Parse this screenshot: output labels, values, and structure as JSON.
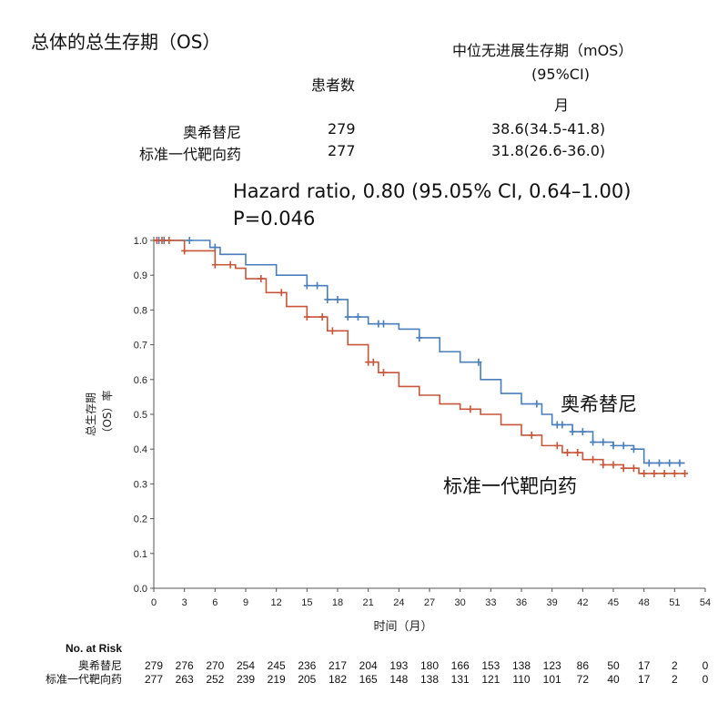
{
  "header": {
    "title": "总体的总生存期（OS）",
    "col_patients": "患者数",
    "col_median_line1": "中位无进展生存期（mOS）",
    "col_median_line2": "(95%CI)",
    "col_median_line3": "月",
    "rows": [
      {
        "name": "奥希替尼",
        "patients": "279",
        "median": "38.6(34.5-41.8)"
      },
      {
        "name": "标准一代靶向药",
        "patients": "277",
        "median": "31.8(26.6-36.0)"
      }
    ],
    "hazard_ratio": "Hazard ratio, 0.80 (95.05% CI, 0.64–1.00)",
    "p_value": "P=0.046"
  },
  "chart_data": {
    "type": "line",
    "subtype": "kaplan-meier-step",
    "xlabel": "时间（月）",
    "ylabel_line1": "总生存期",
    "ylabel_line2": "（OS）率",
    "xlim": [
      0,
      54
    ],
    "ylim": [
      0,
      1.0
    ],
    "xticks": [
      "0",
      "3",
      "6",
      "9",
      "12",
      "15",
      "18",
      "21",
      "24",
      "27",
      "30",
      "33",
      "36",
      "39",
      "42",
      "45",
      "48",
      "51",
      "54"
    ],
    "yticks": [
      "0.0",
      "0.1",
      "0.2",
      "0.3",
      "0.4",
      "0.5",
      "0.6",
      "0.7",
      "0.8",
      "0.9",
      "1.0"
    ],
    "grid": false,
    "series": [
      {
        "name": "奥希替尼",
        "color": "#4a7ebb",
        "x": [
          0,
          5.5,
          6.5,
          9,
          12,
          15,
          17,
          19,
          21,
          24,
          26,
          28,
          30,
          32,
          34,
          36,
          38,
          39,
          41,
          43,
          45,
          47,
          48,
          52
        ],
        "y": [
          1.0,
          0.98,
          0.96,
          0.93,
          0.9,
          0.87,
          0.83,
          0.78,
          0.76,
          0.745,
          0.72,
          0.68,
          0.65,
          0.6,
          0.56,
          0.53,
          0.5,
          0.47,
          0.45,
          0.42,
          0.41,
          0.4,
          0.36,
          0.36
        ],
        "censored_x": [
          0.5,
          1,
          3.5,
          6,
          15,
          16,
          17,
          18,
          19,
          20,
          22,
          22.5,
          26,
          31.8,
          37.5,
          39.5,
          40,
          41,
          42,
          43,
          44,
          45,
          46,
          47,
          48.5,
          49.5,
          50.5,
          51.5
        ]
      },
      {
        "name": "标准一代靶向药",
        "color": "#c8553a",
        "x": [
          0,
          3,
          6,
          8,
          9,
          11,
          13,
          15,
          17,
          19,
          21,
          22,
          24,
          26,
          28,
          30,
          32,
          34,
          36,
          38,
          40,
          42,
          44,
          46,
          47.5,
          52
        ],
        "y": [
          1.0,
          0.97,
          0.93,
          0.92,
          0.89,
          0.85,
          0.81,
          0.78,
          0.74,
          0.7,
          0.65,
          0.62,
          0.58,
          0.555,
          0.53,
          0.515,
          0.5,
          0.47,
          0.44,
          0.41,
          0.39,
          0.37,
          0.355,
          0.345,
          0.33,
          0.33
        ],
        "censored_x": [
          0.3,
          0.8,
          1.5,
          3,
          6,
          7.5,
          10.5,
          12.5,
          15,
          16.5,
          17.5,
          21,
          21.5,
          22.5,
          31,
          37,
          39.5,
          40.5,
          41.5,
          43,
          44,
          45,
          46,
          47,
          48,
          49,
          50,
          51,
          52
        ]
      }
    ],
    "annotations": [
      "奥希替尼",
      "标准一代靶向药"
    ],
    "risk_table": {
      "title": "No. at Risk",
      "rows": [
        {
          "name": "奥希替尼",
          "values": [
            "279",
            "276",
            "270",
            "254",
            "245",
            "236",
            "217",
            "204",
            "193",
            "180",
            "166",
            "153",
            "138",
            "123",
            "86",
            "50",
            "17",
            "2",
            "0"
          ]
        },
        {
          "name": "标准一代靶向药",
          "values": [
            "277",
            "263",
            "252",
            "239",
            "219",
            "205",
            "182",
            "165",
            "148",
            "138",
            "131",
            "121",
            "110",
            "101",
            "72",
            "40",
            "17",
            "2",
            "0"
          ]
        }
      ]
    }
  }
}
